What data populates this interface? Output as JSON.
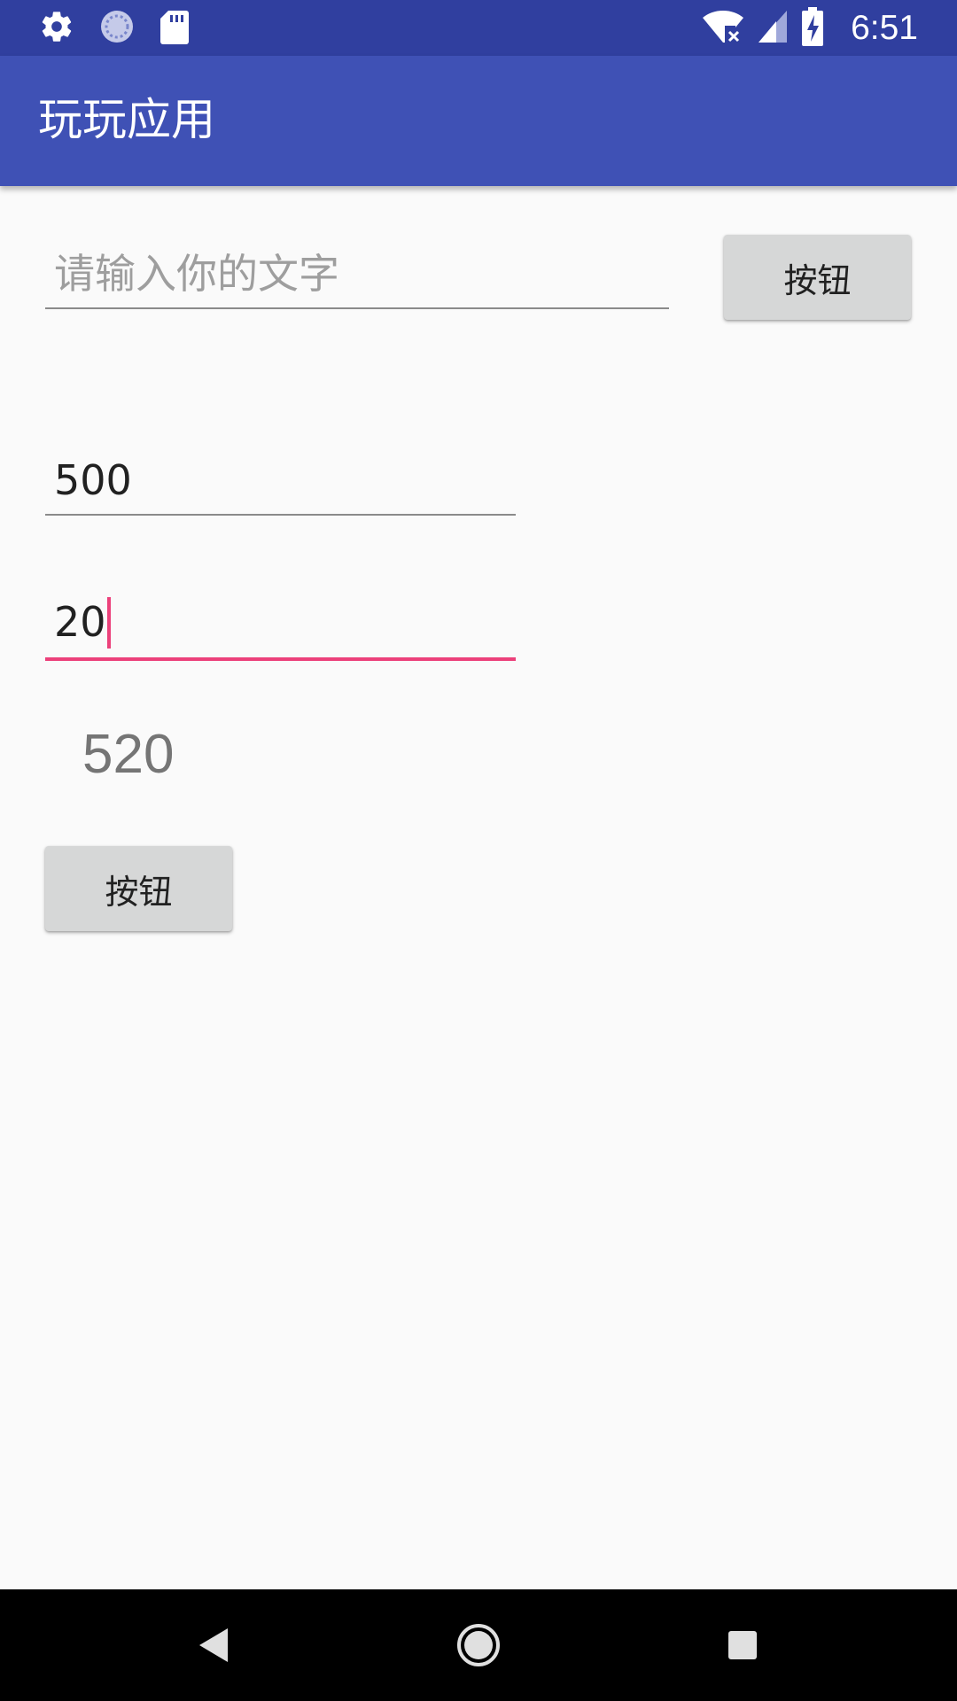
{
  "status_bar": {
    "time": "6:51",
    "left_icons": [
      "settings-icon",
      "sync-icon",
      "sd-card-icon"
    ],
    "right_icons": [
      "wifi-off-icon",
      "signal-icon",
      "battery-charging-icon"
    ],
    "color": "#303f9f"
  },
  "app_bar": {
    "title": "玩玩应用",
    "color": "#3f51b5"
  },
  "main": {
    "text_input": {
      "value": "",
      "placeholder": "请输入你的文字"
    },
    "top_button_label": "按钮",
    "number_input_1": {
      "value": "500"
    },
    "number_input_2": {
      "value": "20"
    },
    "result": "520",
    "bottom_button_label": "按钮",
    "accent_color": "#ec407a"
  },
  "nav_bar": {
    "buttons": [
      "back-icon",
      "home-icon",
      "recents-icon"
    ]
  }
}
